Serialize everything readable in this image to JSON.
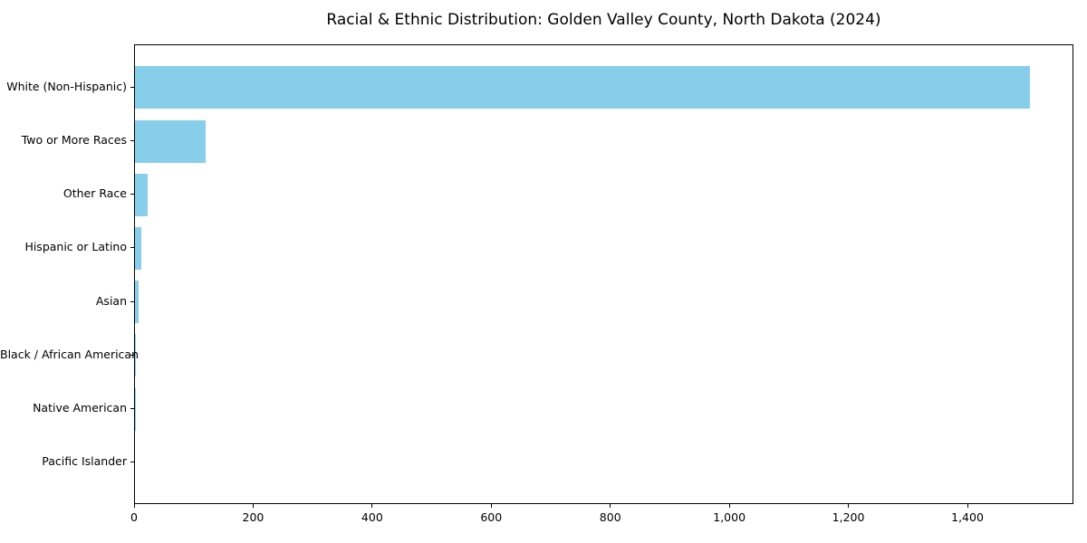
{
  "chart_data": {
    "type": "bar",
    "orientation": "horizontal",
    "title": "Racial & Ethnic Distribution: Golden Valley County, North Dakota (2024)",
    "categories": [
      "White (Non-Hispanic)",
      "Two or More Races",
      "Other Race",
      "Hispanic or Latino",
      "Asian",
      "Black / African American",
      "Native American",
      "Pacific Islander"
    ],
    "values": [
      1503,
      118,
      22,
      10,
      6,
      2,
      1,
      0
    ],
    "xlabel": "",
    "ylabel": "",
    "xlim": [
      0,
      1578
    ],
    "x_ticks": [
      0,
      200,
      400,
      600,
      800,
      1000,
      1200,
      1400
    ],
    "x_tick_labels": [
      "0",
      "200",
      "400",
      "600",
      "800",
      "1,000",
      "1,200",
      "1,400"
    ],
    "bar_color": "#87ceeb",
    "axis_color": "#000000",
    "text_color": "#000000",
    "background_color": "#ffffff",
    "grid": false,
    "legend": null
  }
}
